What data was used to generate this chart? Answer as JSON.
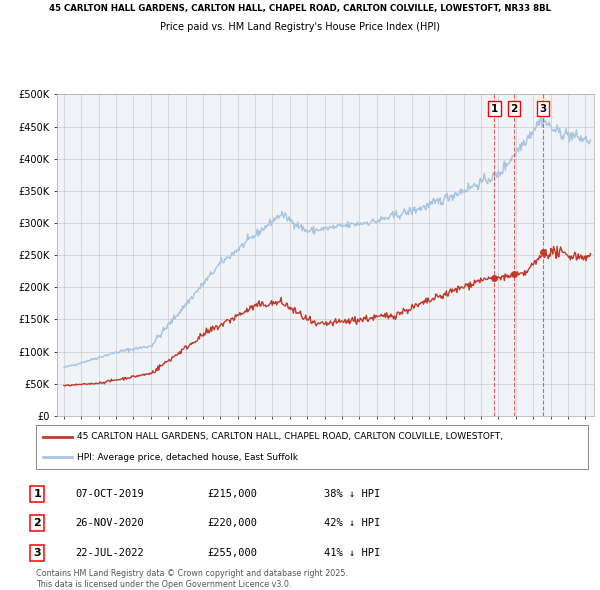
{
  "title_line1": "45 CARLTON HALL GARDENS, CARLTON HALL, CHAPEL ROAD, CARLTON COLVILLE, LOWESTOFT, NR33 8BL",
  "title_line2": "Price paid vs. HM Land Registry's House Price Index (HPI)",
  "ylim": [
    0,
    500000
  ],
  "yticks": [
    0,
    50000,
    100000,
    150000,
    200000,
    250000,
    300000,
    350000,
    400000,
    450000,
    500000
  ],
  "ytick_labels": [
    "£0",
    "£50K",
    "£100K",
    "£150K",
    "£200K",
    "£250K",
    "£300K",
    "£350K",
    "£400K",
    "£450K",
    "£500K"
  ],
  "xlim_start": 1994.6,
  "xlim_end": 2025.5,
  "hpi_color": "#a8c4e0",
  "price_color": "#c0392b",
  "vline_color": "#e05050",
  "grid_color": "#cccccc",
  "background_color": "#ffffff",
  "plot_bg_color": "#f0f4f8",
  "transactions": [
    {
      "label": "1",
      "date_str": "07-OCT-2019",
      "year": 2019.77,
      "price": 215000,
      "pct": "38%",
      "direction": "↓"
    },
    {
      "label": "2",
      "date_str": "26-NOV-2020",
      "year": 2020.91,
      "price": 220000,
      "pct": "42%",
      "direction": "↓"
    },
    {
      "label": "3",
      "date_str": "22-JUL-2022",
      "year": 2022.56,
      "price": 255000,
      "pct": "41%",
      "direction": "↓"
    }
  ],
  "legend_line1": "45 CARLTON HALL GARDENS, CARLTON HALL, CHAPEL ROAD, CARLTON COLVILLE, LOWESTOFT,",
  "legend_line2": "HPI: Average price, detached house, East Suffolk",
  "footnote": "Contains HM Land Registry data © Crown copyright and database right 2025.\nThis data is licensed under the Open Government Licence v3.0."
}
